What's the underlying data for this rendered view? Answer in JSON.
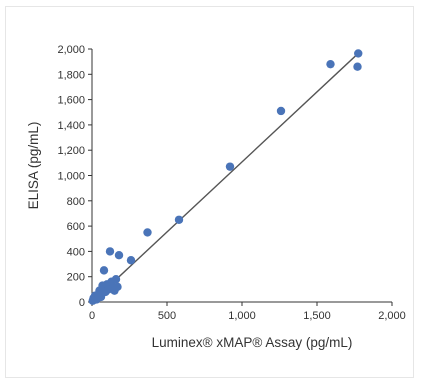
{
  "chart_data": {
    "type": "scatter",
    "title": "",
    "xlabel": "Luminex® xMAP® Assay (pg/mL)",
    "ylabel": "ELISA (pg/mL)",
    "xlim": [
      0,
      2000
    ],
    "ylim": [
      0,
      2000
    ],
    "x_ticks": [
      0,
      500,
      1000,
      1500,
      2000
    ],
    "x_tick_labels": [
      "0",
      "500",
      "1,000",
      "1,500",
      "2,000"
    ],
    "y_ticks": [
      0,
      200,
      400,
      600,
      800,
      1000,
      1200,
      1400,
      1600,
      1800,
      2000
    ],
    "y_tick_labels": [
      "0",
      "200",
      "400",
      "600",
      "800",
      "1,000",
      "1,200",
      "1,400",
      "1,600",
      "1,800",
      "2,000"
    ],
    "grid": false,
    "legend": "none",
    "point_color": "#4a74b8",
    "points": [
      {
        "x": 5,
        "y": 10
      },
      {
        "x": 10,
        "y": 30
      },
      {
        "x": 20,
        "y": 50
      },
      {
        "x": 30,
        "y": 20
      },
      {
        "x": 40,
        "y": 60
      },
      {
        "x": 50,
        "y": 90
      },
      {
        "x": 60,
        "y": 40
      },
      {
        "x": 70,
        "y": 130
      },
      {
        "x": 80,
        "y": 250
      },
      {
        "x": 90,
        "y": 80
      },
      {
        "x": 100,
        "y": 140
      },
      {
        "x": 110,
        "y": 100
      },
      {
        "x": 120,
        "y": 400
      },
      {
        "x": 130,
        "y": 160
      },
      {
        "x": 140,
        "y": 110
      },
      {
        "x": 150,
        "y": 90
      },
      {
        "x": 160,
        "y": 180
      },
      {
        "x": 170,
        "y": 120
      },
      {
        "x": 180,
        "y": 370
      },
      {
        "x": 260,
        "y": 330
      },
      {
        "x": 370,
        "y": 550
      },
      {
        "x": 580,
        "y": 650
      },
      {
        "x": 920,
        "y": 1070
      },
      {
        "x": 1260,
        "y": 1510
      },
      {
        "x": 1590,
        "y": 1880
      },
      {
        "x": 1770,
        "y": 1860
      },
      {
        "x": 1775,
        "y": 1965
      }
    ],
    "fit_line": {
      "x": [
        0,
        1770
      ],
      "y": [
        0,
        1960
      ]
    }
  }
}
